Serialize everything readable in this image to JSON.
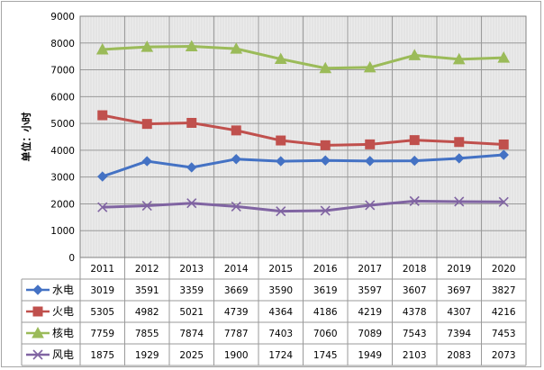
{
  "chart_data": {
    "type": "line",
    "title": "",
    "ylabel": "单位：小时",
    "xlabel": "",
    "ylim": [
      0,
      9000
    ],
    "yticks": [
      0,
      1000,
      2000,
      3000,
      4000,
      5000,
      6000,
      7000,
      8000,
      9000
    ],
    "categories": [
      "2011",
      "2012",
      "2013",
      "2014",
      "2015",
      "2016",
      "2017",
      "2018",
      "2019",
      "2020"
    ],
    "grid": true,
    "legend_placement": "data-table-left",
    "series": [
      {
        "name": "水电",
        "color": "#4472c4",
        "marker": "diamond",
        "values": [
          3019,
          3591,
          3359,
          3669,
          3590,
          3619,
          3597,
          3607,
          3697,
          3827
        ]
      },
      {
        "name": "火电",
        "color": "#c0504d",
        "marker": "square",
        "values": [
          5305,
          4982,
          5021,
          4739,
          4364,
          4186,
          4219,
          4378,
          4307,
          4216
        ]
      },
      {
        "name": "核电",
        "color": "#9bbb59",
        "marker": "triangle",
        "values": [
          7759,
          7855,
          7874,
          7787,
          7403,
          7060,
          7089,
          7543,
          7394,
          7453
        ]
      },
      {
        "name": "风电",
        "color": "#8064a2",
        "marker": "x",
        "values": [
          1875,
          1929,
          2025,
          1900,
          1724,
          1745,
          1949,
          2103,
          2083,
          2073
        ]
      }
    ]
  }
}
